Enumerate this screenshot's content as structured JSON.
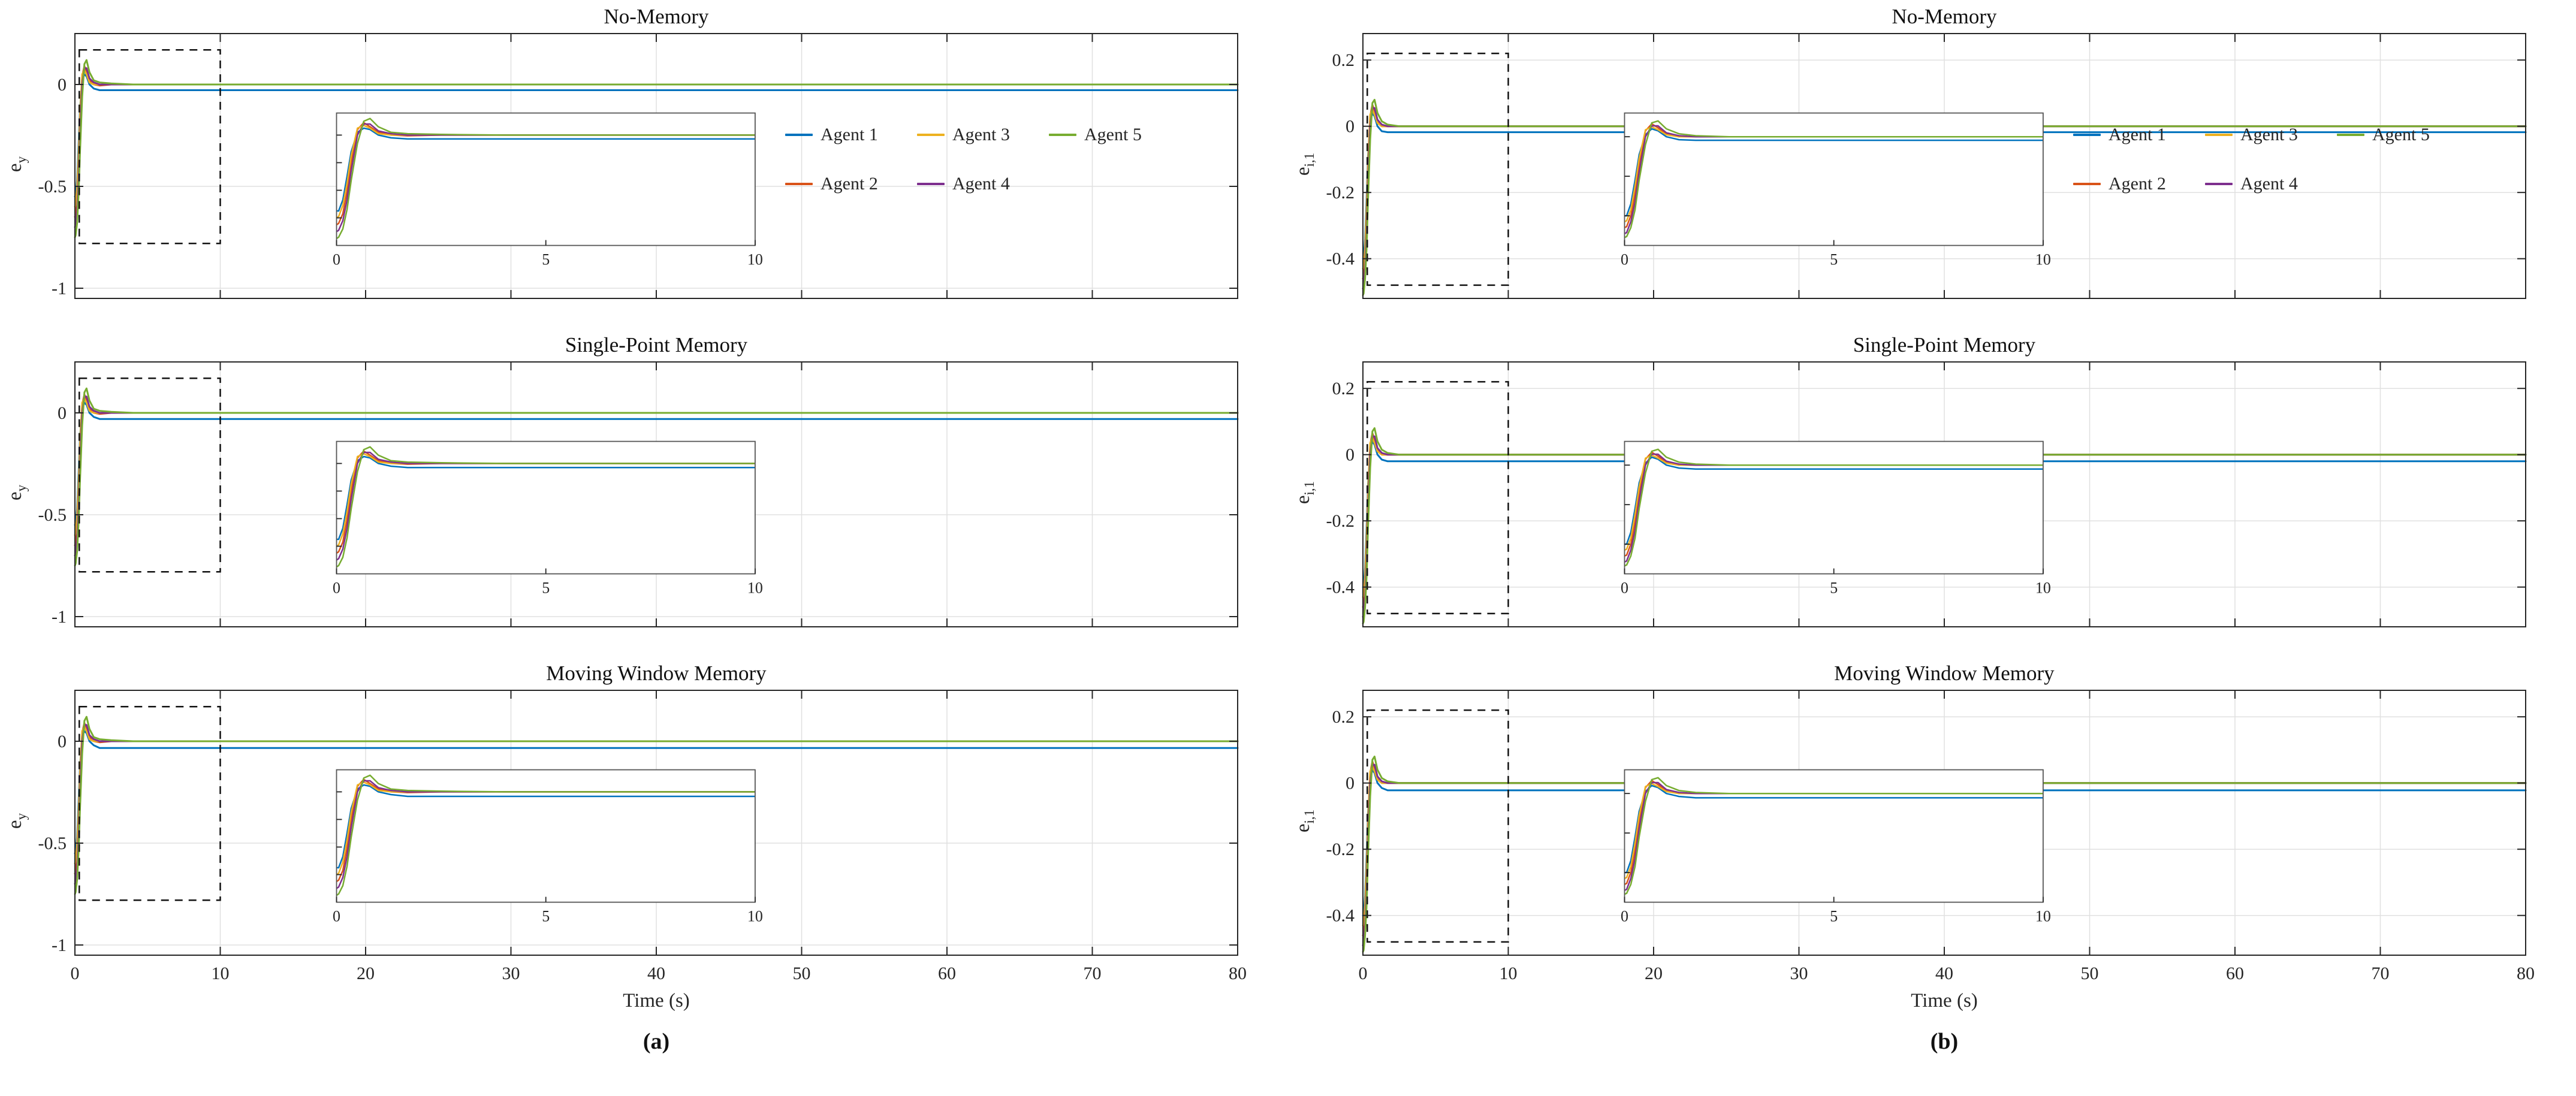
{
  "chart_data": {
    "type": "line",
    "captions": {
      "a": "(a)",
      "b": "(b)"
    },
    "legend": {
      "items": [
        {
          "label": "Agent 1",
          "color": "#0072BD"
        },
        {
          "label": "Agent 3",
          "color": "#EDB120"
        },
        {
          "label": "Agent 5",
          "color": "#77AC30"
        },
        {
          "label": "Agent 2",
          "color": "#D95319"
        },
        {
          "label": "Agent 4",
          "color": "#7E2F8E"
        }
      ]
    },
    "style": {
      "axis_color": "#262626",
      "grid_color": "#e0e0e0",
      "background": "#ffffff",
      "inset_border": "#555555",
      "zoom_box_color": "#111111"
    },
    "columns": [
      {
        "id": "a",
        "xlabel": "Time (s)",
        "ylabel": {
          "base": "e",
          "sub": "y"
        },
        "xlim": [
          0,
          80
        ],
        "xticks": [
          0,
          10,
          20,
          30,
          40,
          50,
          60,
          70,
          80
        ],
        "xtick_labels": [
          "0",
          "10",
          "20",
          "30",
          "40",
          "50",
          "60",
          "70",
          "80"
        ],
        "ylim": [
          -1.05,
          0.25
        ],
        "yticks": [
          0,
          -0.5,
          -1
        ],
        "ytick_labels": [
          "0",
          "-0.5",
          "-1"
        ],
        "grid": true,
        "zoom_region": {
          "x": [
            0.3,
            10
          ],
          "y": [
            -0.78,
            0.17
          ]
        },
        "inset": {
          "xlim": [
            0,
            10
          ],
          "xticks": [
            0,
            5,
            10
          ],
          "ylim": [
            -0.8,
            0.16
          ],
          "yticks": [
            0,
            -0.2,
            -0.4,
            -0.6
          ]
        },
        "t": [
          0,
          0.05,
          0.15,
          0.25,
          0.35,
          0.5,
          0.65,
          0.8,
          1,
          1.3,
          1.7,
          2.5,
          4,
          6,
          10,
          20,
          40,
          60,
          80
        ],
        "series": [
          {
            "name": "Agent 1",
            "color": "#0072BD",
            "values": [
              -0.55,
              -0.55,
              -0.47,
              -0.3,
              -0.12,
              0.02,
              0.05,
              0.04,
              0,
              -0.02,
              -0.03,
              -0.03,
              -0.03,
              -0.03,
              -0.03,
              -0.03,
              -0.03,
              -0.03,
              -0.03
            ]
          },
          {
            "name": "Agent 2",
            "color": "#D95319",
            "values": [
              -0.65,
              -0.64,
              -0.57,
              -0.41,
              -0.2,
              0.04,
              0.09,
              0.06,
              0.02,
              0,
              -0.005,
              0,
              0,
              0,
              0,
              0,
              0,
              0,
              0
            ]
          },
          {
            "name": "Agent 3",
            "color": "#EDB120",
            "values": [
              -0.6,
              -0.59,
              -0.51,
              -0.35,
              -0.15,
              0.05,
              0.07,
              0.05,
              0.01,
              0,
              0,
              0,
              0,
              0,
              0,
              0,
              0,
              0,
              0
            ]
          },
          {
            "name": "Agent 4",
            "color": "#7E2F8E",
            "values": [
              -0.7,
              -0.69,
              -0.62,
              -0.47,
              -0.26,
              0,
              0.08,
              0.08,
              0.03,
              0.01,
              0,
              0,
              0,
              0,
              0,
              0,
              0,
              0,
              0
            ]
          },
          {
            "name": "Agent 5",
            "color": "#77AC30",
            "values": [
              -0.75,
              -0.74,
              -0.68,
              -0.54,
              -0.33,
              -0.06,
              0.1,
              0.12,
              0.06,
              0.02,
              0.01,
              0.005,
              0,
              0,
              0,
              0,
              0,
              0,
              0
            ]
          }
        ],
        "rows": [
          {
            "title": "No-Memory",
            "overrides": {
              "Agent 1": {
                "from_t": 1.5,
                "settle": -0.028
              }
            }
          },
          {
            "title": "Single-Point Memory",
            "overrides": {
              "Agent 1": {
                "from_t": 1.5,
                "settle": -0.03
              }
            }
          },
          {
            "title": "Moving Window Memory",
            "overrides": {
              "Agent 1": {
                "from_t": 1.5,
                "settle": -0.033
              }
            }
          }
        ]
      },
      {
        "id": "b",
        "xlabel": "Time (s)",
        "ylabel": {
          "base": "e",
          "sub": "i,1"
        },
        "xlim": [
          0,
          80
        ],
        "xticks": [
          0,
          10,
          20,
          30,
          40,
          50,
          60,
          70,
          80
        ],
        "xtick_labels": [
          "0",
          "10",
          "20",
          "30",
          "40",
          "50",
          "60",
          "70",
          "80"
        ],
        "ylim": [
          -0.52,
          0.28
        ],
        "yticks": [
          0.2,
          0,
          -0.2,
          -0.4
        ],
        "ytick_labels": [
          "0.2",
          "0",
          "-0.2",
          "-0.4"
        ],
        "grid": true,
        "zoom_region": {
          "x": [
            0.3,
            10
          ],
          "y": [
            -0.48,
            0.22
          ]
        },
        "inset": {
          "xlim": [
            0,
            10
          ],
          "xticks": [
            0,
            5,
            10
          ],
          "ylim": [
            -0.55,
            0.12
          ],
          "yticks": [
            0,
            -0.2,
            -0.4
          ]
        },
        "t": [
          0,
          0.05,
          0.15,
          0.25,
          0.35,
          0.5,
          0.65,
          0.8,
          1,
          1.3,
          1.7,
          2.5,
          4,
          6,
          10,
          20,
          40,
          60,
          80
        ],
        "series": [
          {
            "name": "Agent 1",
            "color": "#0072BD",
            "values": [
              -0.4,
              -0.4,
              -0.34,
              -0.22,
              -0.09,
              0.01,
              0.04,
              0.03,
              0,
              -0.015,
              -0.02,
              -0.02,
              -0.02,
              -0.02,
              -0.02,
              -0.02,
              -0.02,
              -0.02,
              -0.02
            ]
          },
          {
            "name": "Agent 2",
            "color": "#D95319",
            "values": [
              -0.46,
              -0.455,
              -0.4,
              -0.29,
              -0.14,
              0.03,
              0.065,
              0.045,
              0.015,
              0,
              0,
              0,
              0,
              0,
              0,
              0,
              0,
              0,
              0
            ]
          },
          {
            "name": "Agent 3",
            "color": "#EDB120",
            "values": [
              -0.43,
              -0.425,
              -0.37,
              -0.25,
              -0.11,
              0.035,
              0.05,
              0.035,
              0.01,
              0,
              0,
              0,
              0,
              0,
              0,
              0,
              0,
              0,
              0
            ]
          },
          {
            "name": "Agent 4",
            "color": "#7E2F8E",
            "values": [
              -0.49,
              -0.485,
              -0.43,
              -0.33,
              -0.18,
              0,
              0.055,
              0.055,
              0.02,
              0.005,
              0,
              0,
              0,
              0,
              0,
              0,
              0,
              0,
              0
            ]
          },
          {
            "name": "Agent 5",
            "color": "#77AC30",
            "values": [
              -0.51,
              -0.505,
              -0.46,
              -0.37,
              -0.22,
              -0.04,
              0.07,
              0.08,
              0.04,
              0.015,
              0.005,
              0,
              0,
              0,
              0,
              0,
              0,
              0,
              0
            ]
          }
        ],
        "rows": [
          {
            "title": "No-Memory",
            "overrides": {
              "Agent 1": {
                "from_t": 1.5,
                "settle": -0.018
              }
            }
          },
          {
            "title": "Single-Point Memory",
            "overrides": {
              "Agent 1": {
                "from_t": 1.5,
                "settle": -0.02
              }
            }
          },
          {
            "title": "Moving Window Memory",
            "overrides": {
              "Agent 1": {
                "from_t": 1.5,
                "settle": -0.022
              }
            }
          }
        ]
      }
    ]
  }
}
